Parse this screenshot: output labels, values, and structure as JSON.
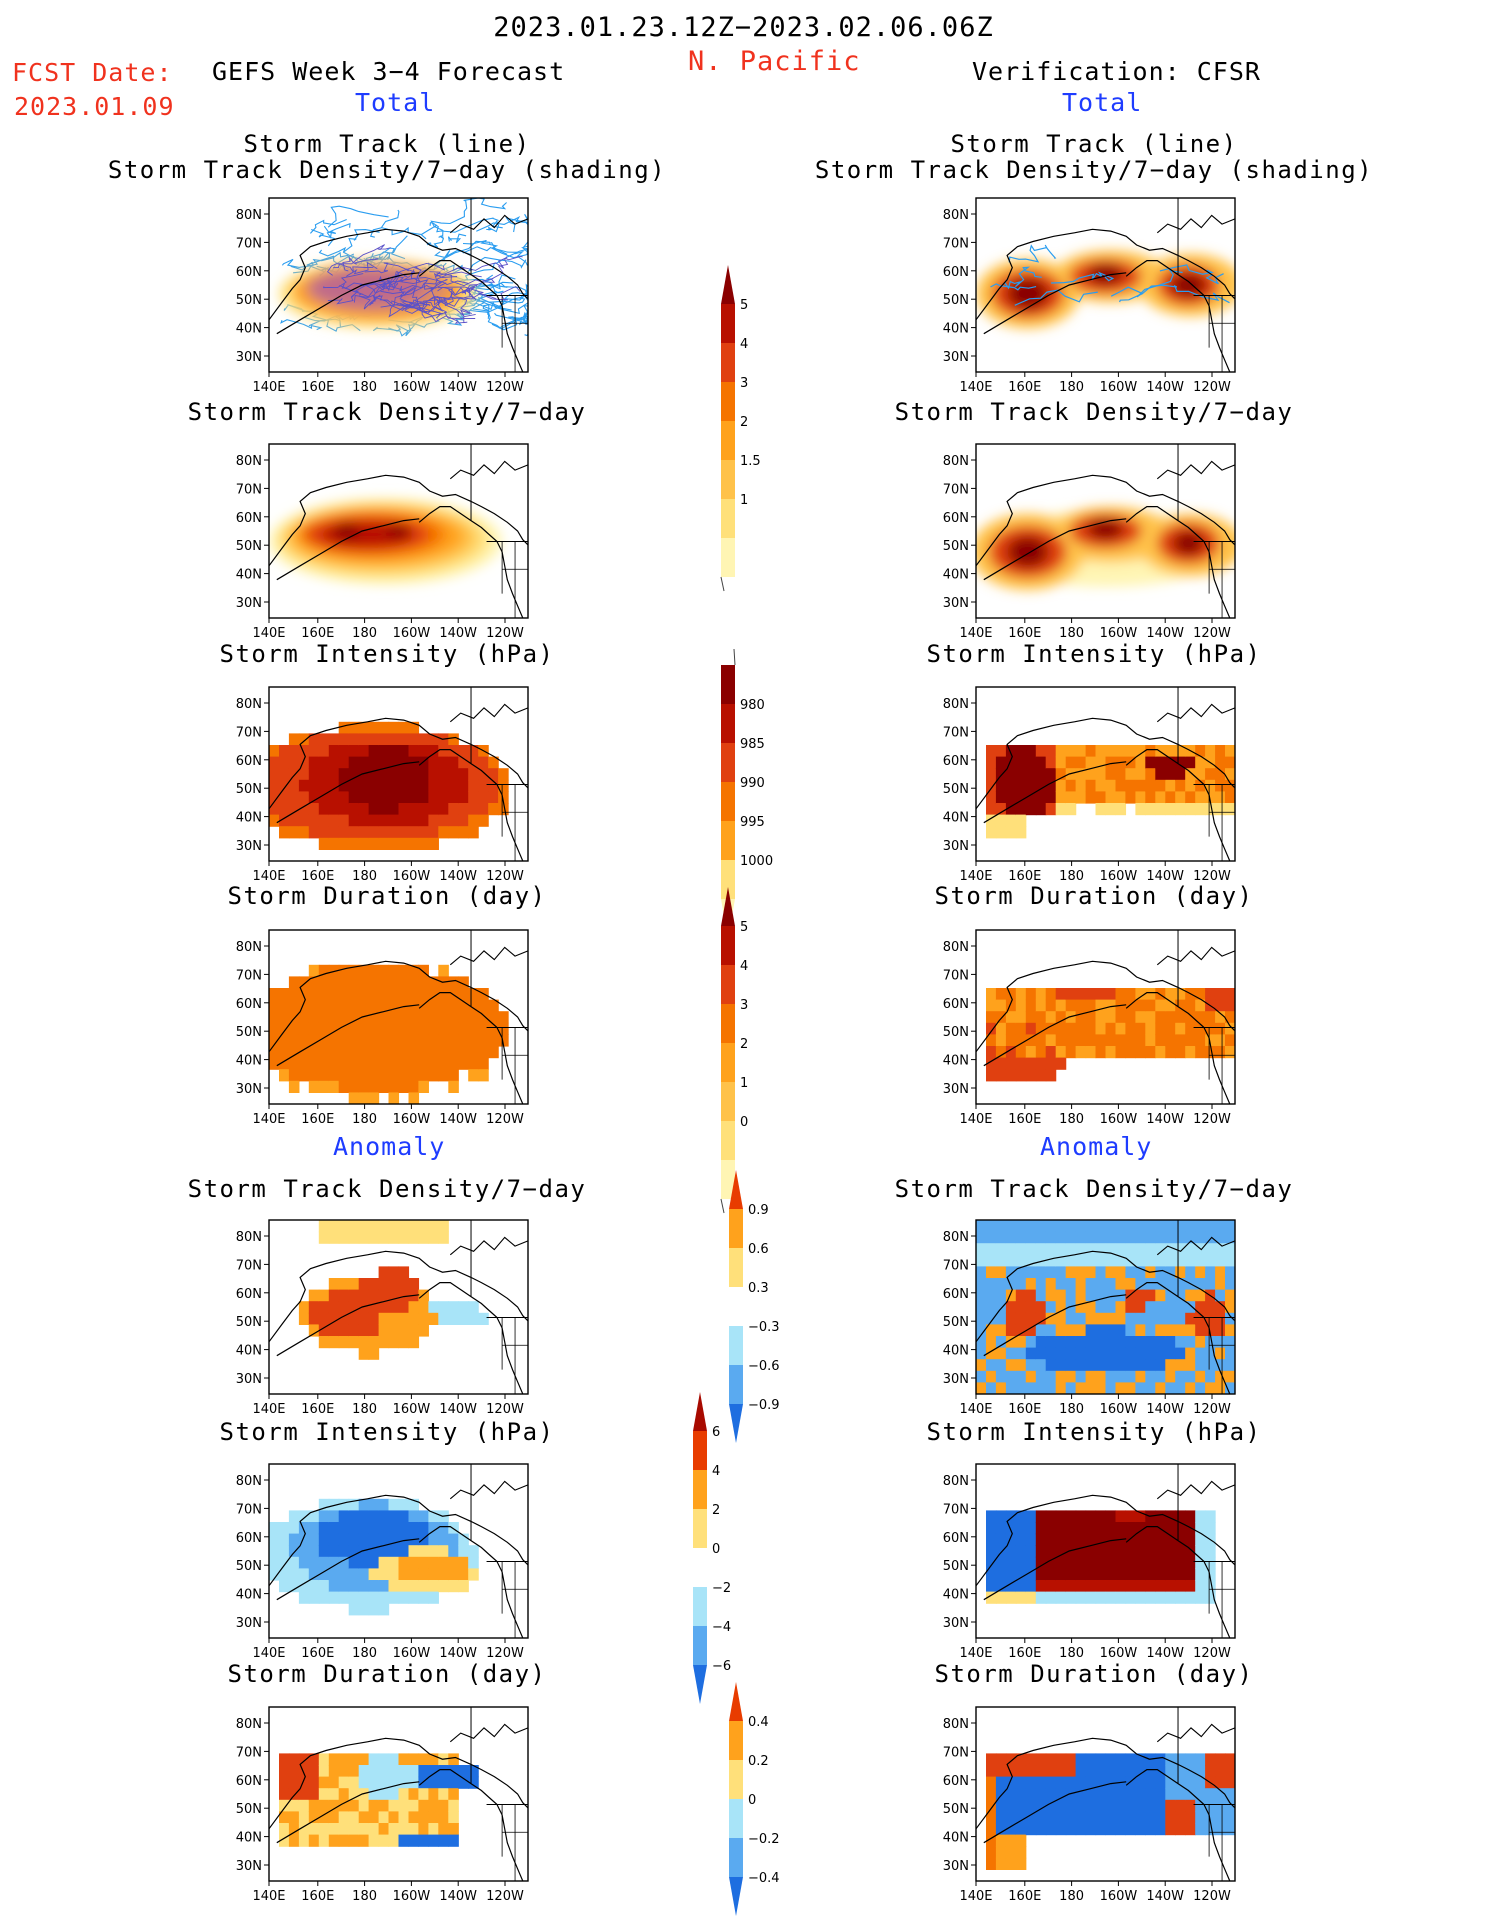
{
  "header": {
    "date_range": "2023.01.23.12Z−2023.02.06.06Z",
    "region": "N. Pacific",
    "fcst_label": "FCST Date:",
    "fcst_date": "2023.01.09",
    "forecast_title": "GEFS Week 3−4 Forecast",
    "verification_title": "Verification: CFSR",
    "total_left": "Total",
    "total_right": "Total",
    "anomaly_left": "Anomaly",
    "anomaly_right": "Anomaly"
  },
  "panel_titles": {
    "track_line": "Storm Track (line)",
    "track_shading": "Storm Track Density/7−day (shading)",
    "density": "Storm Track Density/7−day",
    "intensity": "Storm Intensity (hPa)",
    "duration": "Storm Duration (day)"
  },
  "colors": {
    "title_red": "#f0321e",
    "title_blue": "#1e3cff",
    "track_line": "#2a9df0",
    "land_line": "#000000"
  },
  "chart_data": [
    {
      "type": "heatmap",
      "id": "map_axes",
      "xlabel": "",
      "ylabel": "",
      "x_ticks": [
        "140E",
        "160E",
        "180",
        "160W",
        "140W",
        "120W"
      ],
      "y_ticks": [
        "80N",
        "70N",
        "60N",
        "50N",
        "40N",
        "30N"
      ],
      "xlim": [
        140,
        245
      ],
      "ylim": [
        25,
        85
      ]
    },
    {
      "type": "heatmap",
      "id": "colorbar_density",
      "levels": [
        "1",
        "1.5",
        "2",
        "3",
        "4",
        "5"
      ],
      "colors": [
        "#fff5b4",
        "#ffe07a",
        "#ffc24a",
        "#ffa21c",
        "#f57400",
        "#e04010",
        "#b81000",
        "#8a0000"
      ]
    },
    {
      "type": "heatmap",
      "id": "colorbar_intensity",
      "levels": [
        "1000",
        "995",
        "990",
        "985",
        "980"
      ],
      "colors": [
        "#fff5b4",
        "#ffe07a",
        "#ffa21c",
        "#f57400",
        "#e04010",
        "#b81000",
        "#8a0000"
      ]
    },
    {
      "type": "heatmap",
      "id": "colorbar_duration",
      "levels": [
        "0",
        "1",
        "2",
        "3",
        "4",
        "5"
      ],
      "colors": [
        "#fff5b4",
        "#ffe07a",
        "#ffc24a",
        "#ffa21c",
        "#f57400",
        "#e04010",
        "#b81000",
        "#8a0000"
      ]
    },
    {
      "type": "heatmap",
      "id": "colorbar_anom_density",
      "levels": [
        "0.9",
        "0.6",
        "0.3",
        "−0.3",
        "−0.6",
        "−0.9"
      ],
      "colors": [
        "#e83c00",
        "#ffa21c",
        "#ffe07a",
        "#ffffff",
        "#a8e4f8",
        "#5aaaf0",
        "#1e6ee0"
      ]
    },
    {
      "type": "heatmap",
      "id": "colorbar_anom_intensity",
      "levels": [
        "6",
        "4",
        "2",
        "0",
        "−2",
        "−4",
        "−6"
      ],
      "colors": [
        "#a80a00",
        "#e83c00",
        "#ffa21c",
        "#ffe07a",
        "#ffffff",
        "#a8e4f8",
        "#5aaaf0",
        "#1e6ee0"
      ]
    },
    {
      "type": "heatmap",
      "id": "colorbar_anom_duration",
      "levels": [
        "0.4",
        "0.2",
        "0",
        "−0.2",
        "−0.4"
      ],
      "colors": [
        "#e83c00",
        "#ffa21c",
        "#ffe07a",
        "#a8e4f8",
        "#5aaaf0",
        "#1e6ee0"
      ]
    }
  ]
}
